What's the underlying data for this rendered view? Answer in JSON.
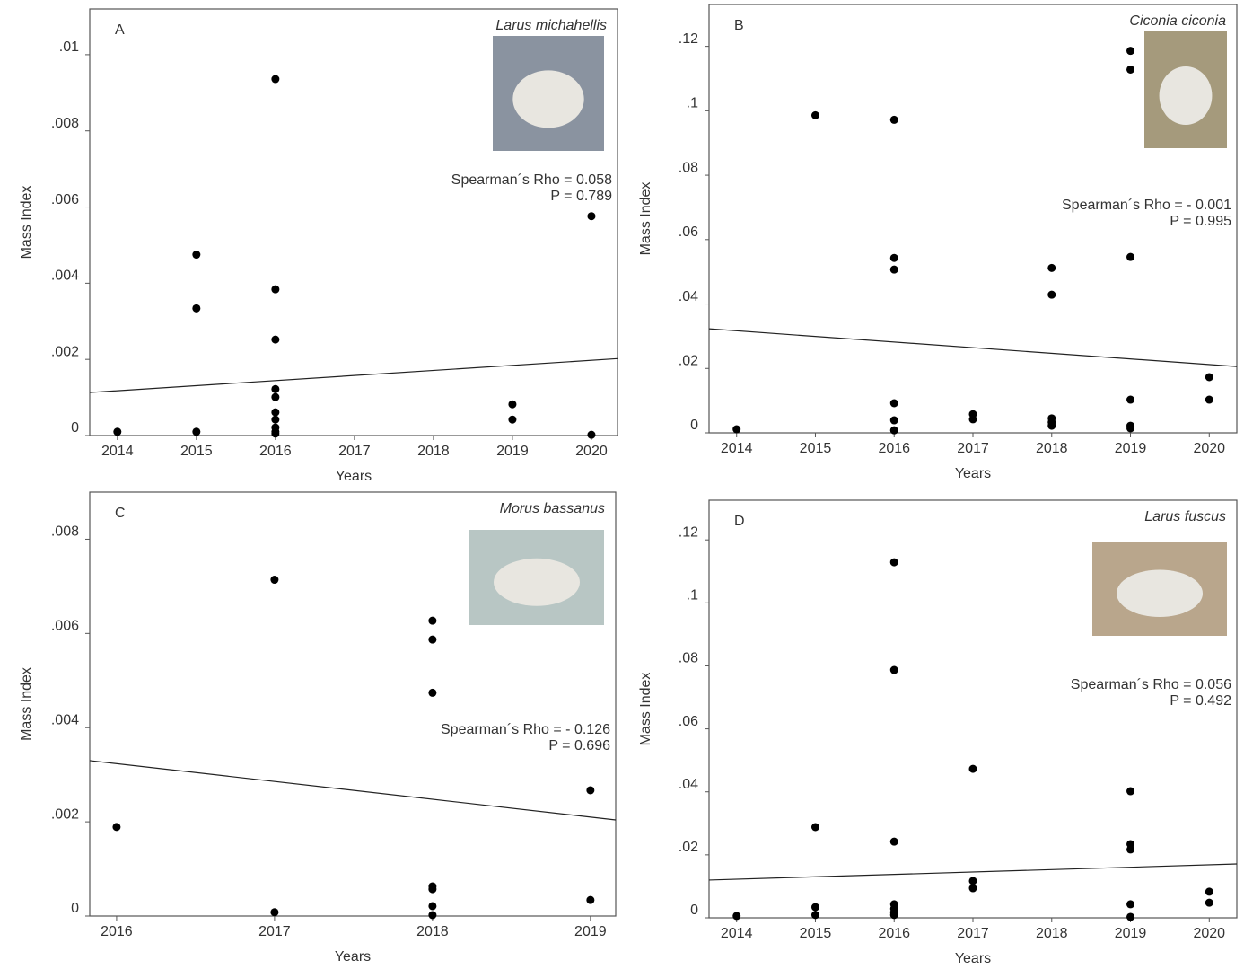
{
  "chart_data": [
    {
      "type": "scatter",
      "panel": "A",
      "species": "Larus michahellis",
      "x_label": "Years",
      "y_label": "Mass Index",
      "stat_rho": "Spearman´s Rho = 0.058",
      "stat_p": "P = 0.789",
      "xlim": [
        2013.65,
        2020.33
      ],
      "xticks": [
        2014,
        2015,
        2016,
        2017,
        2018,
        2019,
        2020
      ],
      "ylim": [
        0,
        0.0112
      ],
      "yticks": [
        0,
        {
          "value": 0.002,
          "label": ".002"
        },
        {
          "value": 0.004,
          "label": ".004"
        },
        {
          "value": 0.006,
          "label": ".006"
        },
        {
          "value": 0.008,
          "label": ".008"
        },
        {
          "value": 0.01,
          "label": ".01"
        }
      ],
      "color": "#000000",
      "x": [
        2014,
        2015,
        2015,
        2015,
        2016,
        2016,
        2016,
        2016,
        2016,
        2016,
        2016,
        2016,
        2016,
        2016,
        2019,
        2019,
        2020,
        2020
      ],
      "values": [
        0.0001,
        0.00475,
        0.00334,
        0.0001,
        0.00936,
        0.00384,
        0.00252,
        0.00122,
        0.00101,
        0.00061,
        0.00042,
        0.00021,
        0.0001,
        5e-05,
        0.00082,
        0.00042,
        0.00576,
        2e-05
      ],
      "fit": {
        "x": [
          2013.65,
          2020.33
        ],
        "values": [
          0.00113,
          0.00202
        ]
      }
    },
    {
      "type": "scatter",
      "panel": "B",
      "species": "Ciconia ciconia",
      "x_label": "Years",
      "y_label": "Mass Index",
      "stat_rho": "Spearman´s Rho = - 0.001",
      "stat_p": "P = 0.995",
      "xlim": [
        2013.65,
        2020.35
      ],
      "xticks": [
        2014,
        2015,
        2016,
        2017,
        2018,
        2019,
        2020
      ],
      "ylim": [
        0,
        0.133
      ],
      "yticks": [
        0,
        {
          "value": 0.02,
          "label": ".02"
        },
        {
          "value": 0.04,
          "label": ".04"
        },
        {
          "value": 0.06,
          "label": ".06"
        },
        {
          "value": 0.08,
          "label": ".08"
        },
        {
          "value": 0.1,
          "label": ".1"
        },
        {
          "value": 0.12,
          "label": ".12"
        }
      ],
      "color": "#000000",
      "x": [
        2014,
        2015,
        2016,
        2016,
        2016,
        2016,
        2016,
        2016,
        2017,
        2017,
        2018,
        2018,
        2018,
        2018,
        2018,
        2019,
        2019,
        2019,
        2019,
        2019,
        2019,
        2020,
        2020
      ],
      "values": [
        0.0011,
        0.0986,
        0.0972,
        0.0543,
        0.0507,
        0.0092,
        0.0039,
        0.0008,
        0.0058,
        0.0042,
        0.0512,
        0.0429,
        0.0045,
        0.0033,
        0.0022,
        0.1186,
        0.1128,
        0.0546,
        0.0103,
        0.0022,
        0.0014,
        0.0173,
        0.0103
      ],
      "fit": {
        "x": [
          2013.65,
          2020.35
        ],
        "values": [
          0.0323,
          0.0206
        ]
      }
    },
    {
      "type": "scatter",
      "panel": "C",
      "species": "Morus bassanus",
      "x_label": "Years",
      "y_label": "Mass Index",
      "stat_rho": "Spearman´s Rho = - 0.126",
      "stat_p": "P = 0.696",
      "xlim": [
        2015.83,
        2019.16
      ],
      "xticks": [
        2016,
        2017,
        2018,
        2019
      ],
      "ylim": [
        0,
        0.009
      ],
      "yticks": [
        0,
        {
          "value": 0.002,
          "label": ".002"
        },
        {
          "value": 0.004,
          "label": ".004"
        },
        {
          "value": 0.006,
          "label": ".006"
        },
        {
          "value": 0.008,
          "label": ".008"
        }
      ],
      "color": "#000000",
      "x": [
        2016,
        2017,
        2017,
        2018,
        2018,
        2018,
        2018,
        2018,
        2018,
        2018,
        2019,
        2019
      ],
      "values": [
        0.00189,
        0.00714,
        8e-05,
        0.00627,
        0.00587,
        0.00474,
        0.00063,
        0.00057,
        0.00021,
        2e-05,
        0.00267,
        0.00034
      ],
      "fit": {
        "x": [
          2015.83,
          2019.16
        ],
        "values": [
          0.0033,
          0.00204
        ]
      }
    },
    {
      "type": "scatter",
      "panel": "D",
      "species": "Larus fuscus",
      "x_label": "Years",
      "y_label": "Mass Index",
      "stat_rho": "Spearman´s Rho = 0.056",
      "stat_p": "P = 0.492",
      "xlim": [
        2013.65,
        2020.35
      ],
      "xticks": [
        2014,
        2015,
        2016,
        2017,
        2018,
        2019,
        2020
      ],
      "ylim": [
        0,
        0.1326
      ],
      "yticks": [
        0,
        {
          "value": 0.02,
          "label": ".02"
        },
        {
          "value": 0.04,
          "label": ".04"
        },
        {
          "value": 0.06,
          "label": ".06"
        },
        {
          "value": 0.08,
          "label": ".08"
        },
        {
          "value": 0.1,
          "label": ".1"
        },
        {
          "value": 0.12,
          "label": ".12"
        }
      ],
      "color": "#000000",
      "x": [
        2014,
        2015,
        2015,
        2015,
        2016,
        2016,
        2016,
        2016,
        2016,
        2016,
        2016,
        2017,
        2017,
        2017,
        2019,
        2019,
        2019,
        2019,
        2019,
        2020,
        2020
      ],
      "values": [
        0.0006,
        0.0288,
        0.0034,
        0.0009,
        0.1129,
        0.0787,
        0.0242,
        0.0043,
        0.0029,
        0.0017,
        0.0009,
        0.0473,
        0.0117,
        0.0094,
        0.0402,
        0.0234,
        0.0217,
        0.0043,
        0.0003,
        0.0083,
        0.0048
      ],
      "fit": {
        "x": [
          2013.65,
          2020.35
        ],
        "values": [
          0.012,
          0.0171
        ]
      }
    }
  ]
}
